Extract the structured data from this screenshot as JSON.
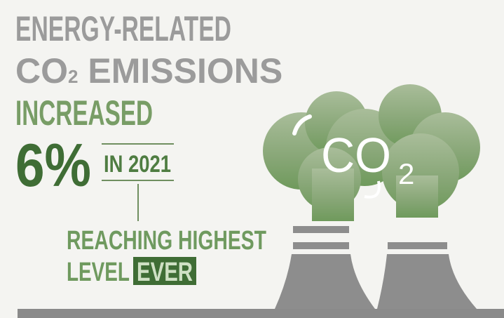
{
  "headline": {
    "line1": "ENERGY-RELATED",
    "line2": {
      "co": "CO",
      "sub": "2",
      "rest": " EMISSIONS"
    },
    "line3": "INCREASED"
  },
  "stat": {
    "value": "6%",
    "period": "IN 2021"
  },
  "note": {
    "line1": "REACHING HIGHEST",
    "line2": "LEVEL",
    "highlight": "EVER"
  },
  "illustration": {
    "co": "CO",
    "sub": "2"
  }
}
